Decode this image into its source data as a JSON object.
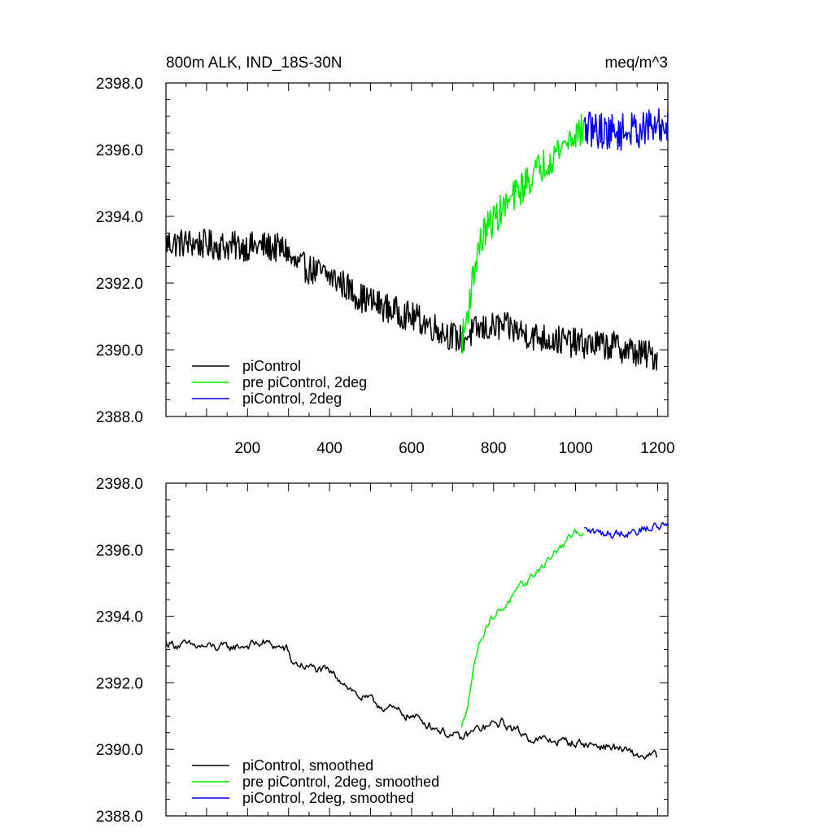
{
  "header": {
    "left_title": "800m ALK, IND_18S-30N",
    "right_title": "meq/m^3"
  },
  "colors": {
    "piControl": "#000000",
    "pre_piControl_2deg": "#00ee00",
    "piControl_2deg": "#0000ee"
  },
  "chart_data": [
    {
      "type": "line",
      "title": "800m ALK, IND_18S-30N",
      "units": "meq/m^3",
      "xlim": [
        1,
        1225
      ],
      "ylim": [
        2388.0,
        2398.0
      ],
      "xticks": [
        200,
        400,
        600,
        800,
        1000,
        1200
      ],
      "xtick_labels": [
        "200",
        "400",
        "600",
        "800",
        "1000",
        "1200"
      ],
      "yticks": [
        2388.0,
        2390.0,
        2392.0,
        2394.0,
        2396.0,
        2398.0
      ],
      "ytick_labels": [
        "2388.0",
        "2390.0",
        "2392.0",
        "2394.0",
        "2396.0",
        "2398.0"
      ],
      "legend_position": "bottom-left",
      "smoothed": false,
      "series": [
        {
          "name": "piControl",
          "color": "#000000",
          "x_range": [
            1,
            1200
          ],
          "trend": [
            [
              1,
              2393.2
            ],
            [
              60,
              2393.2
            ],
            [
              150,
              2393.1
            ],
            [
              240,
              2393.1
            ],
            [
              295,
              2393.0
            ],
            [
              310,
              2392.6
            ],
            [
              400,
              2392.2
            ],
            [
              430,
              2392.0
            ],
            [
              470,
              2391.6
            ],
            [
              550,
              2391.2
            ],
            [
              620,
              2390.9
            ],
            [
              700,
              2390.4
            ],
            [
              720,
              2390.3
            ],
            [
              760,
              2390.6
            ],
            [
              820,
              2390.7
            ],
            [
              850,
              2390.6
            ],
            [
              900,
              2390.4
            ],
            [
              1000,
              2390.2
            ],
            [
              1100,
              2390.1
            ],
            [
              1150,
              2389.9
            ],
            [
              1200,
              2389.8
            ]
          ],
          "noise_amplitude": 0.45,
          "label": "piControl"
        },
        {
          "name": "pre piControl, 2deg",
          "color": "#00ee00",
          "x_range": [
            722,
            1021
          ],
          "trend": [
            [
              722,
              2390.3
            ],
            [
              730,
              2390.6
            ],
            [
              745,
              2391.8
            ],
            [
              760,
              2392.9
            ],
            [
              780,
              2393.6
            ],
            [
              800,
              2393.9
            ],
            [
              850,
              2394.6
            ],
            [
              900,
              2395.3
            ],
            [
              950,
              2395.9
            ],
            [
              1000,
              2396.5
            ],
            [
              1021,
              2396.6
            ]
          ],
          "noise_amplitude": 0.5,
          "label": "pre piControl, 2deg"
        },
        {
          "name": "piControl, 2deg",
          "color": "#0000ee",
          "x_range": [
            1021,
            1225
          ],
          "trend": [
            [
              1021,
              2396.6
            ],
            [
              1050,
              2396.6
            ],
            [
              1100,
              2396.5
            ],
            [
              1150,
              2396.6
            ],
            [
              1200,
              2396.7
            ],
            [
              1225,
              2396.7
            ]
          ],
          "noise_amplitude": 0.55,
          "label": "piControl, 2deg"
        }
      ]
    },
    {
      "type": "line",
      "xlim": [
        1,
        1225
      ],
      "ylim": [
        2388.0,
        2398.0
      ],
      "xticks": [
        200,
        400,
        600,
        800,
        1000,
        1200
      ],
      "yticks": [
        2388.0,
        2390.0,
        2392.0,
        2394.0,
        2396.0,
        2398.0
      ],
      "ytick_labels": [
        "2388.0",
        "2390.0",
        "2392.0",
        "2394.0",
        "2396.0",
        "2398.0"
      ],
      "legend_position": "bottom-left",
      "smoothed": true,
      "series": [
        {
          "name": "piControl, smoothed",
          "color": "#000000",
          "x_range": [
            1,
            1200
          ],
          "trend": [
            [
              1,
              2393.2
            ],
            [
              60,
              2393.1
            ],
            [
              150,
              2393.05
            ],
            [
              240,
              2393.2
            ],
            [
              295,
              2393.0
            ],
            [
              310,
              2392.6
            ],
            [
              400,
              2392.3
            ],
            [
              430,
              2392.1
            ],
            [
              470,
              2391.6
            ],
            [
              550,
              2391.2
            ],
            [
              620,
              2390.9
            ],
            [
              700,
              2390.4
            ],
            [
              720,
              2390.3
            ],
            [
              760,
              2390.6
            ],
            [
              820,
              2390.8
            ],
            [
              850,
              2390.6
            ],
            [
              900,
              2390.3
            ],
            [
              1000,
              2390.2
            ],
            [
              1100,
              2390.05
            ],
            [
              1150,
              2389.8
            ],
            [
              1200,
              2389.8
            ]
          ],
          "noise_amplitude": 0.28,
          "label": "piControl, smoothed"
        },
        {
          "name": "pre piControl, 2deg, smoothed",
          "color": "#00ee00",
          "x_range": [
            722,
            1021
          ],
          "trend": [
            [
              722,
              2390.6
            ],
            [
              730,
              2391.0
            ],
            [
              745,
              2392.0
            ],
            [
              760,
              2393.0
            ],
            [
              780,
              2393.7
            ],
            [
              800,
              2394.0
            ],
            [
              850,
              2394.6
            ],
            [
              900,
              2395.3
            ],
            [
              950,
              2395.9
            ],
            [
              1000,
              2396.5
            ],
            [
              1021,
              2396.6
            ]
          ],
          "noise_amplitude": 0.26,
          "label": "pre piControl, 2deg, smoothed"
        },
        {
          "name": "piControl, 2deg, smoothed",
          "color": "#0000ee",
          "x_range": [
            1021,
            1225
          ],
          "trend": [
            [
              1021,
              2396.6
            ],
            [
              1050,
              2396.5
            ],
            [
              1100,
              2396.5
            ],
            [
              1150,
              2396.6
            ],
            [
              1200,
              2396.7
            ],
            [
              1225,
              2396.8
            ]
          ],
          "noise_amplitude": 0.3,
          "label": "piControl, 2deg, smoothed"
        }
      ]
    }
  ]
}
